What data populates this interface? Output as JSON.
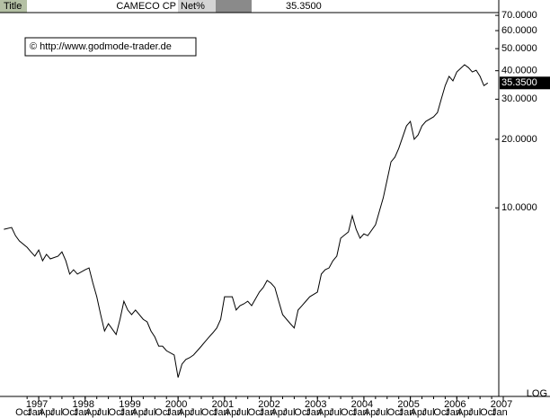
{
  "header": {
    "field": "Title",
    "name": "CAMECO CP",
    "mode": "Net%",
    "last": "35.3500"
  },
  "chart_data": {
    "type": "line",
    "log_scale": true,
    "annotation": "© http://www.godmode-trader.de",
    "scale_label": "LOG",
    "last_value": 35.35,
    "last_value_label": "35.3500",
    "xlim": [
      "1996-03",
      "2007-01"
    ],
    "xticks": [
      1997,
      1998,
      1999,
      2000,
      2001,
      2002,
      2003,
      2004,
      2005,
      2006,
      2007
    ],
    "xticks_minor": [
      {
        "value": "1996-10",
        "label": "Oct"
      },
      {
        "value": "1997-01",
        "label": "Jan"
      },
      {
        "value": "1997-04",
        "label": "Apr"
      },
      {
        "value": "1997-07",
        "label": "Jul"
      },
      {
        "value": "1997-10",
        "label": "Oct"
      },
      {
        "value": "1998-01",
        "label": "Jan"
      },
      {
        "value": "1998-04",
        "label": "Apr"
      },
      {
        "value": "1998-07",
        "label": "Jul"
      },
      {
        "value": "1998-10",
        "label": "Oct"
      },
      {
        "value": "1999-01",
        "label": "Jan"
      },
      {
        "value": "1999-04",
        "label": "Apr"
      },
      {
        "value": "1999-07",
        "label": "Jul"
      },
      {
        "value": "1999-10",
        "label": "Oct"
      },
      {
        "value": "2000-01",
        "label": "Jan"
      },
      {
        "value": "2000-04",
        "label": "Apr"
      },
      {
        "value": "2000-07",
        "label": "Jul"
      },
      {
        "value": "2000-10",
        "label": "Oct"
      },
      {
        "value": "2001-01",
        "label": "Jan"
      },
      {
        "value": "2001-04",
        "label": "Apr"
      },
      {
        "value": "2001-07",
        "label": "Jul"
      },
      {
        "value": "2001-10",
        "label": "Oct"
      },
      {
        "value": "2002-01",
        "label": "Jan"
      },
      {
        "value": "2002-04",
        "label": "Apr"
      },
      {
        "value": "2002-07",
        "label": "Jul"
      },
      {
        "value": "2002-10",
        "label": "Oct"
      },
      {
        "value": "2003-01",
        "label": "Jan"
      },
      {
        "value": "2003-04",
        "label": "Apr"
      },
      {
        "value": "2003-07",
        "label": "Jul"
      },
      {
        "value": "2003-10",
        "label": "Oct"
      },
      {
        "value": "2004-01",
        "label": "Jan"
      },
      {
        "value": "2004-04",
        "label": "Apr"
      },
      {
        "value": "2004-07",
        "label": "Jul"
      },
      {
        "value": "2004-10",
        "label": "Oct"
      },
      {
        "value": "2005-01",
        "label": "Jan"
      },
      {
        "value": "2005-04",
        "label": "Apr"
      },
      {
        "value": "2005-07",
        "label": "Jul"
      },
      {
        "value": "2005-10",
        "label": "Oct"
      },
      {
        "value": "2006-01",
        "label": "Jan"
      },
      {
        "value": "2006-04",
        "label": "Apr"
      },
      {
        "value": "2006-07",
        "label": "Jul"
      },
      {
        "value": "2006-10",
        "label": "Oct"
      },
      {
        "value": "2007-01",
        "label": "Jan"
      }
    ],
    "ylim": [
      1.5,
      72
    ],
    "yticks": [
      {
        "value": 10,
        "label": "10.0000"
      },
      {
        "value": 20,
        "label": "20.0000"
      },
      {
        "value": 30,
        "label": "30.0000"
      },
      {
        "value": 40,
        "label": "40.0000"
      },
      {
        "value": 50,
        "label": "50.0000"
      },
      {
        "value": 60,
        "label": "60.0000"
      },
      {
        "value": 70,
        "label": "70.0000"
      }
    ],
    "x": [
      "1996-04",
      "1996-06",
      "1996-07",
      "1996-08",
      "1996-10",
      "1996-11",
      "1996-12",
      "1997-01",
      "1997-02",
      "1997-03",
      "1997-04",
      "1997-06",
      "1997-07",
      "1997-08",
      "1997-09",
      "1997-10",
      "1997-11",
      "1998-01",
      "1998-02",
      "1998-03",
      "1998-04",
      "1998-05",
      "1998-06",
      "1998-07",
      "1998-09",
      "1998-10",
      "1998-11",
      "1998-12",
      "1999-01",
      "1999-02",
      "1999-04",
      "1999-05",
      "1999-06",
      "1999-07",
      "1999-08",
      "1999-09",
      "1999-10",
      "1999-12",
      "2000-01",
      "2000-02",
      "2000-03",
      "2000-04",
      "2000-05",
      "2000-07",
      "2000-08",
      "2000-09",
      "2000-10",
      "2000-11",
      "2000-12",
      "2001-01",
      "2001-03",
      "2001-04",
      "2001-05",
      "2001-06",
      "2001-07",
      "2001-08",
      "2001-10",
      "2001-11",
      "2001-12",
      "2002-01",
      "2002-02",
      "2002-03",
      "2002-04",
      "2002-06",
      "2002-07",
      "2002-08",
      "2002-09",
      "2002-10",
      "2002-11",
      "2003-01",
      "2003-02",
      "2003-03",
      "2003-04",
      "2003-05",
      "2003-06",
      "2003-07",
      "2003-09",
      "2003-10",
      "2003-11",
      "2003-12",
      "2004-01",
      "2004-02",
      "2004-04",
      "2004-05",
      "2004-06",
      "2004-07",
      "2004-08",
      "2004-09",
      "2004-10",
      "2004-12",
      "2005-01",
      "2005-02",
      "2005-03",
      "2005-04",
      "2005-05",
      "2005-07",
      "2005-08",
      "2005-09",
      "2005-10",
      "2005-11",
      "2005-12",
      "2006-01",
      "2006-03",
      "2006-04",
      "2006-05",
      "2006-06",
      "2006-07",
      "2006-08",
      "2006-09"
    ],
    "series": [
      {
        "name": "CAMECO CP",
        "color": "#000000",
        "values": [
          8.05,
          8.2,
          7.55,
          7.16,
          6.71,
          6.41,
          6.14,
          6.53,
          5.86,
          6.25,
          5.97,
          6.14,
          6.41,
          5.86,
          5.12,
          5.35,
          5.12,
          5.35,
          5.45,
          4.67,
          4.07,
          3.4,
          2.88,
          3.1,
          2.78,
          3.24,
          3.89,
          3.56,
          3.4,
          3.56,
          3.24,
          3.16,
          2.88,
          2.71,
          2.47,
          2.47,
          2.36,
          2.26,
          1.8,
          2.06,
          2.16,
          2.2,
          2.26,
          2.47,
          2.59,
          2.71,
          2.83,
          2.97,
          3.24,
          4.07,
          4.07,
          3.56,
          3.72,
          3.79,
          3.89,
          3.72,
          4.27,
          4.47,
          4.8,
          4.67,
          4.47,
          3.89,
          3.4,
          3.1,
          2.97,
          3.56,
          3.72,
          3.89,
          4.07,
          4.27,
          5.12,
          5.35,
          5.45,
          5.86,
          6.14,
          7.36,
          7.84,
          9.23,
          8.05,
          7.36,
          7.69,
          7.55,
          8.43,
          9.66,
          11.07,
          13.27,
          15.92,
          16.67,
          18.24,
          22.9,
          23.97,
          20.0,
          20.9,
          22.9,
          23.97,
          25.1,
          26.2,
          30.1,
          34.4,
          37.8,
          36.1,
          39.5,
          42.5,
          41.3,
          39.5,
          40.2,
          37.8,
          34.4,
          35.35
        ]
      }
    ]
  }
}
